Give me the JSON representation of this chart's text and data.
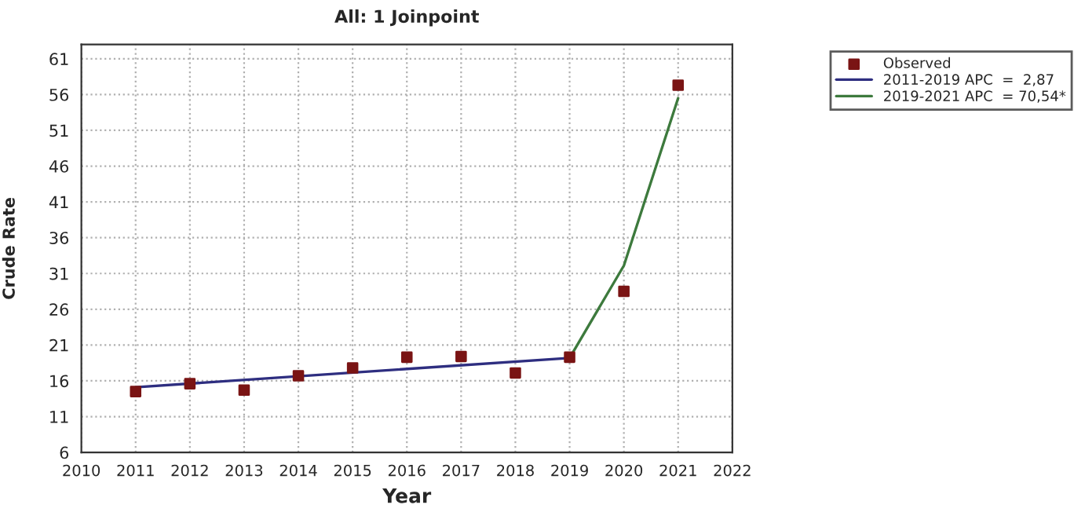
{
  "chart_data": {
    "type": "line",
    "title": "All: 1 Joinpoint",
    "xlabel": "Year",
    "ylabel": "Crude Rate",
    "xlim": [
      2010,
      2022
    ],
    "xticks": [
      2010,
      2011,
      2012,
      2013,
      2014,
      2015,
      2016,
      2017,
      2018,
      2019,
      2020,
      2021,
      2022
    ],
    "ylim": [
      6,
      63
    ],
    "yticks": [
      6,
      11,
      16,
      21,
      26,
      31,
      36,
      41,
      46,
      51,
      56,
      61
    ],
    "grid": true,
    "legend": "top right",
    "series": [
      {
        "name": "Observed",
        "type": "scatter",
        "marker": "square",
        "color": "#7a1414",
        "x": [
          2011,
          2012,
          2013,
          2014,
          2015,
          2016,
          2017,
          2018,
          2019,
          2020,
          2021
        ],
        "values": [
          14.5,
          15.6,
          14.7,
          16.7,
          17.8,
          19.3,
          19.4,
          17.1,
          19.3,
          28.5,
          57.3
        ]
      },
      {
        "name": "2011-2019 APC  =  2,87",
        "color": "#2e2e80",
        "x": [
          2011,
          2019
        ],
        "values": [
          15.1,
          19.2
        ]
      },
      {
        "name": "2019-2021 APC  = 70,54*",
        "color": "#3d7a3d",
        "x": [
          2019,
          2020,
          2021
        ],
        "values": [
          19.2,
          32.1,
          55.5
        ]
      }
    ]
  }
}
